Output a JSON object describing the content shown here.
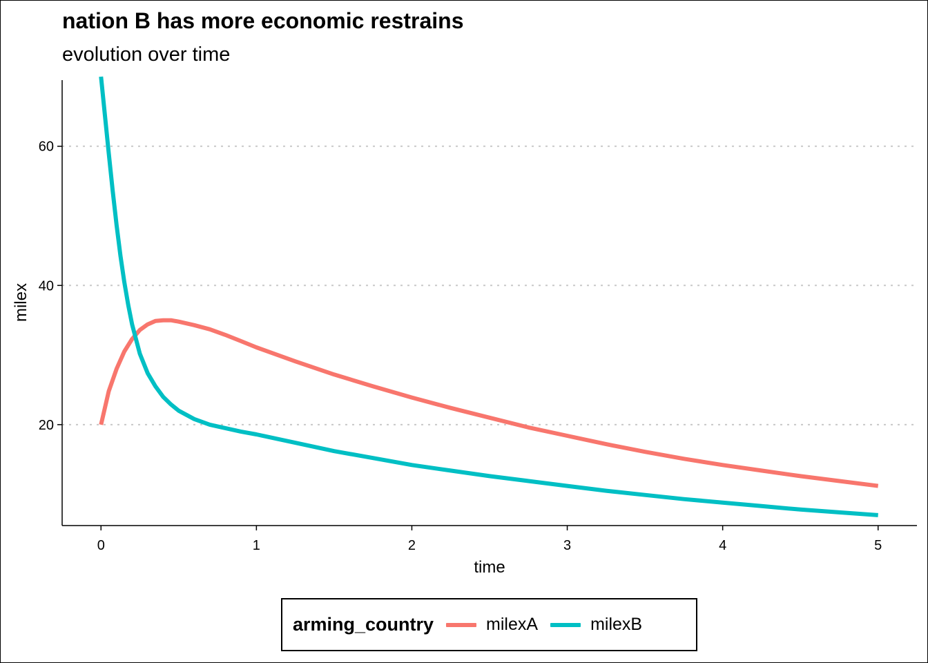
{
  "chart_data": {
    "type": "line",
    "title": "nation B has more economic restrains",
    "subtitle": "evolution over time",
    "xlabel": "time",
    "ylabel": "milex",
    "xlim": [
      -0.25,
      5.25
    ],
    "ylim": [
      5.5,
      69.5
    ],
    "x_ticks": [
      0,
      1,
      2,
      3,
      4,
      5
    ],
    "y_ticks": [
      20,
      40,
      60
    ],
    "grid": "horizontal dotted major",
    "legend": {
      "title": "arming_country",
      "position": "bottom"
    },
    "series": [
      {
        "name": "milexA",
        "color": "#F8766D",
        "x": [
          0,
          0.05,
          0.1,
          0.15,
          0.2,
          0.25,
          0.3,
          0.35,
          0.4,
          0.45,
          0.5,
          0.6,
          0.7,
          0.8,
          0.9,
          1.0,
          1.25,
          1.5,
          1.75,
          2.0,
          2.25,
          2.5,
          2.75,
          3.0,
          3.25,
          3.5,
          3.75,
          4.0,
          4.25,
          4.5,
          4.75,
          5.0
        ],
        "y": [
          20.0,
          24.8,
          28.0,
          30.5,
          32.3,
          33.6,
          34.4,
          34.9,
          35.0,
          35.0,
          34.8,
          34.3,
          33.7,
          32.9,
          32.0,
          31.1,
          29.1,
          27.2,
          25.5,
          23.9,
          22.4,
          21.0,
          19.6,
          18.4,
          17.2,
          16.1,
          15.1,
          14.2,
          13.4,
          12.6,
          11.9,
          11.2
        ]
      },
      {
        "name": "milexB",
        "color": "#00BFC4",
        "x": [
          0,
          0.025,
          0.05,
          0.075,
          0.1,
          0.125,
          0.15,
          0.175,
          0.2,
          0.25,
          0.3,
          0.35,
          0.4,
          0.45,
          0.5,
          0.6,
          0.7,
          0.8,
          0.9,
          1.0,
          1.25,
          1.5,
          1.75,
          2.0,
          2.25,
          2.5,
          2.75,
          3.0,
          3.25,
          3.5,
          3.75,
          4.0,
          4.25,
          4.5,
          4.75,
          5.0
        ],
        "y": [
          70.0,
          64.5,
          59.0,
          53.6,
          48.7,
          44.3,
          40.5,
          37.2,
          34.4,
          30.2,
          27.4,
          25.5,
          24.0,
          22.9,
          22.0,
          20.8,
          20.0,
          19.5,
          19.0,
          18.6,
          17.4,
          16.2,
          15.2,
          14.2,
          13.4,
          12.6,
          11.9,
          11.2,
          10.5,
          9.9,
          9.3,
          8.8,
          8.3,
          7.8,
          7.4,
          7.0
        ]
      }
    ]
  }
}
